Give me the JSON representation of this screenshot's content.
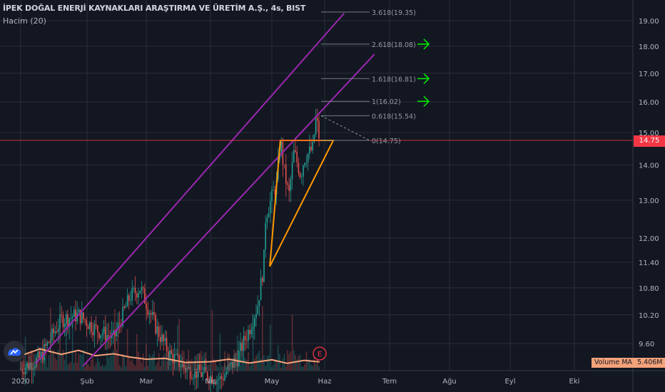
{
  "header": {
    "title": "İPEK DOĞAL ENERJİ KAYNAKLARI ARAŞTIRMA VE ÜRETİM A.Ş., 4s, BIST",
    "volume_indicator": "Hacim (20)"
  },
  "price_tag": "14.75",
  "volume_ma_tag": {
    "label": "Volume MA",
    "value": "5.406M"
  },
  "event_marker": "E",
  "icons": {
    "logo": "tradingview-cloud-icon"
  },
  "colors": {
    "background": "#131722",
    "grid": "#2a2e39",
    "axis_text": "#b2b5be",
    "channel": "#9c27b0",
    "triangle": "#ff9800",
    "price_line": "#f23645",
    "fib_text": "#9598a1",
    "arrow": "#00e600",
    "candle_up": "#26a69a",
    "candle_down": "#ef5350",
    "volume_ma": "#f4a27a"
  },
  "chart_data": {
    "type": "candlestick",
    "symbol": "İPEK DOĞAL ENERJİ KAYNAKLARI ARAŞTIRMA VE ÜRETİM A.Ş.",
    "interval": "4s",
    "exchange": "BIST",
    "y_scale": "log",
    "x_ticks": [
      "2020",
      "Şub",
      "Mar",
      "Nis",
      "May",
      "Haz",
      "Tem",
      "Ağu",
      "Eyl",
      "Eki"
    ],
    "y_ticks": [
      "9.60",
      "10.20",
      "10.80",
      "11.40",
      "12.00",
      "13.00",
      "14.00",
      "15.00",
      "16.00",
      "17.00",
      "18.00",
      "19.00"
    ],
    "y_tick_values": [
      9.6,
      10.2,
      10.8,
      11.4,
      12.0,
      13.0,
      14.0,
      15.0,
      16.0,
      17.0,
      18.0,
      19.0
    ],
    "last_price": 14.75,
    "price_path": [
      [
        "2020-01-01",
        9.1
      ],
      [
        "2020-01-10",
        9.3
      ],
      [
        "2020-01-20",
        10.1
      ],
      [
        "2020-01-28",
        10.2
      ],
      [
        "2020-02-05",
        9.9
      ],
      [
        "2020-02-14",
        9.7
      ],
      [
        "2020-02-22",
        10.6
      ],
      [
        "2020-02-27",
        10.8
      ],
      [
        "2020-03-06",
        9.9
      ],
      [
        "2020-03-12",
        9.4
      ],
      [
        "2020-03-20",
        9.1
      ],
      [
        "2020-03-28",
        9.0
      ],
      [
        "2020-04-06",
        8.9
      ],
      [
        "2020-04-14",
        9.3
      ],
      [
        "2020-04-20",
        9.9
      ],
      [
        "2020-04-24",
        10.4
      ],
      [
        "2020-04-27",
        11.3
      ],
      [
        "2020-04-28",
        12.6
      ],
      [
        "2020-04-30",
        12.9
      ],
      [
        "2020-05-04",
        13.5
      ],
      [
        "2020-05-06",
        14.8
      ],
      [
        "2020-05-08",
        13.9
      ],
      [
        "2020-05-11",
        13.1
      ],
      [
        "2020-05-14",
        14.4
      ],
      [
        "2020-05-18",
        13.7
      ],
      [
        "2020-05-20",
        14.2
      ],
      [
        "2020-05-25",
        14.5
      ],
      [
        "2020-05-27",
        15.5
      ],
      [
        "2020-05-29",
        14.75
      ]
    ],
    "volume_ma": [
      [
        "2020-01-01",
        0.55
      ],
      [
        "2020-01-10",
        0.8
      ],
      [
        "2020-01-20",
        0.6
      ],
      [
        "2020-01-28",
        0.75
      ],
      [
        "2020-02-05",
        0.55
      ],
      [
        "2020-02-14",
        0.62
      ],
      [
        "2020-02-22",
        0.5
      ],
      [
        "2020-03-01",
        0.42
      ],
      [
        "2020-03-10",
        0.45
      ],
      [
        "2020-03-20",
        0.3
      ],
      [
        "2020-04-01",
        0.33
      ],
      [
        "2020-04-10",
        0.42
      ],
      [
        "2020-04-20",
        0.28
      ],
      [
        "2020-05-01",
        0.4
      ],
      [
        "2020-05-10",
        0.27
      ],
      [
        "2020-05-20",
        0.38
      ],
      [
        "2020-05-29",
        0.32
      ]
    ],
    "channel_lines": [
      {
        "name": "upper",
        "from": [
          "2020-01-08",
          9.2
        ],
        "to": [
          "2020-06-10",
          19.3
        ]
      },
      {
        "name": "lower",
        "from": [
          "2020-01-30",
          9.15
        ],
        "to": [
          "2020-06-24",
          17.7
        ]
      }
    ],
    "triangle": [
      [
        "2020-05-06",
        14.75
      ],
      [
        "2020-06-05",
        14.75
      ],
      [
        "2020-04-30",
        11.3
      ]
    ],
    "fibonacci": {
      "anchor_high": 15.54,
      "anchor_low": 14.75,
      "levels": [
        {
          "level": "3.618",
          "price": 19.35,
          "label": "3.618(19.35)"
        },
        {
          "level": "2.618",
          "price": 18.08,
          "label": "2.618(18.08)"
        },
        {
          "level": "1.618",
          "price": 16.81,
          "label": "1.618(16.81)"
        },
        {
          "level": "1",
          "price": 16.02,
          "label": "1(16.02)"
        },
        {
          "level": "0.618",
          "price": 15.54,
          "label": "0.618(15.54)"
        },
        {
          "level": "0",
          "price": 14.75,
          "label": "0(14.75)"
        }
      ],
      "arrows_at_levels": [
        "2.618",
        "1.618",
        "1"
      ]
    },
    "legend": [
      {
        "name": "Volume MA",
        "value": "5.406M"
      }
    ]
  }
}
